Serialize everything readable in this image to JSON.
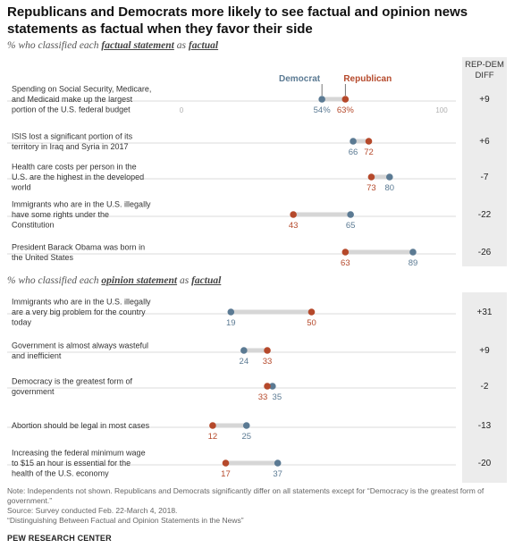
{
  "title": "Republicans and Democrats more likely to see factual and opinion news statements as factual when they favor their side",
  "section1": {
    "prefix": "% who classified each ",
    "em1": "factual statement",
    "mid": " as ",
    "em2": "factual"
  },
  "section2": {
    "prefix": "% who classified each ",
    "em1": "opinion statement",
    "mid": " as ",
    "em2": "factual"
  },
  "diff_header": {
    "line1": "REP-DEM",
    "line2": "DIFF"
  },
  "colors": {
    "democrat": "#5b7a93",
    "republican": "#b5492b",
    "bar": "#d6d6d6",
    "rule": "#cfcfcf",
    "axis_text": "#b0b0b0",
    "diff_bg": "#ececec"
  },
  "chart_data": {
    "type": "dot",
    "xlim": [
      0,
      100
    ],
    "axis_labels": [
      "0",
      "100"
    ],
    "series_names": [
      "Democrat",
      "Republican"
    ],
    "groups": [
      {
        "name": "factual",
        "items": [
          {
            "label": [
              "Spending on Social Security, Medicare,",
              "and Medicaid make up the largest",
              "portion of the U.S. federal budget"
            ],
            "democrat": 54,
            "republican": 63,
            "dem_label": "54%",
            "rep_label": "63%",
            "diff": "+9"
          },
          {
            "label": [
              "ISIS lost a significant portion of its",
              "territory in Iraq and Syria in 2017"
            ],
            "democrat": 66,
            "republican": 72,
            "dem_label": "66",
            "rep_label": "72",
            "diff": "+6"
          },
          {
            "label": [
              "Health care costs per person in the",
              "U.S. are the highest in the developed",
              "world"
            ],
            "democrat": 80,
            "republican": 73,
            "dem_label": "80",
            "rep_label": "73",
            "diff": "-7"
          },
          {
            "label": [
              "Immigrants who are in the U.S. illegally",
              "have some rights under the",
              "Constitution"
            ],
            "democrat": 65,
            "republican": 43,
            "dem_label": "65",
            "rep_label": "43",
            "diff": "-22"
          },
          {
            "label": [
              "President Barack Obama was born in",
              "the United States"
            ],
            "democrat": 89,
            "republican": 63,
            "dem_label": "89",
            "rep_label": "63",
            "diff": "-26"
          }
        ]
      },
      {
        "name": "opinion",
        "items": [
          {
            "label": [
              "Immigrants who are in the U.S. illegally",
              "are a very big problem for the country",
              "today"
            ],
            "democrat": 19,
            "republican": 50,
            "dem_label": "19",
            "rep_label": "50",
            "diff": "+31"
          },
          {
            "label": [
              "Government is almost always wasteful",
              "and inefficient"
            ],
            "democrat": 24,
            "republican": 33,
            "dem_label": "24",
            "rep_label": "33",
            "diff": "+9"
          },
          {
            "label": [
              "Democracy is the greatest form of",
              "government"
            ],
            "democrat": 35,
            "republican": 33,
            "dem_label": "35",
            "rep_label": "33",
            "diff": "-2"
          },
          {
            "label": [
              "Abortion should be legal in most cases"
            ],
            "democrat": 25,
            "republican": 12,
            "dem_label": "25",
            "rep_label": "12",
            "diff": "-13"
          },
          {
            "label": [
              "Increasing the federal minimum wage",
              "to $15 an hour is essential for the",
              "health of the U.S. economy"
            ],
            "democrat": 37,
            "republican": 17,
            "dem_label": "37",
            "rep_label": "17",
            "diff": "-20"
          }
        ]
      }
    ]
  },
  "footer": {
    "note": "Note: Independents not shown. Republicans and Democrats significantly differ on all statements except for “Democracy is the greatest form of government.”",
    "source": "Source: Survey conducted Feb. 22-March 4, 2018.",
    "report": "“Distinguishing Between Factual and Opinion Statements in the News”",
    "org": "PEW RESEARCH CENTER"
  }
}
